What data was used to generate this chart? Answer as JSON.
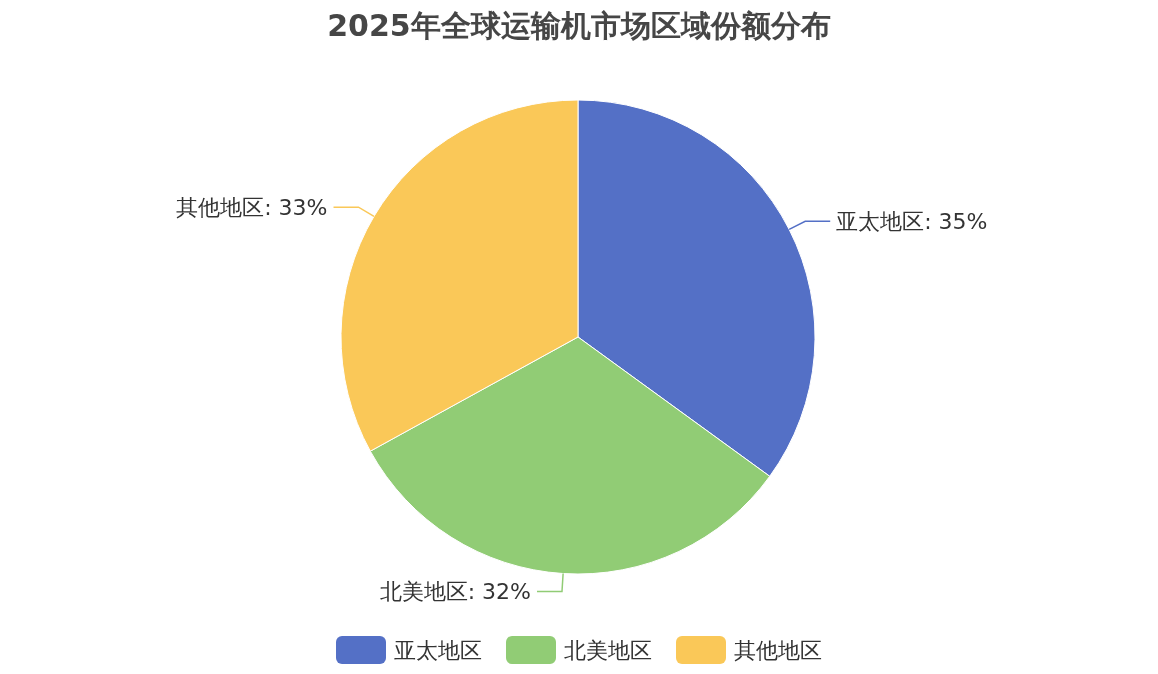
{
  "chart_data": {
    "type": "pie",
    "title": "2025年全球运输机市场区域份额分布",
    "categories": [
      "亚太地区",
      "北美地区",
      "其他地区"
    ],
    "values": [
      35,
      32,
      33
    ],
    "colors": [
      "#5470c6",
      "#91cc75",
      "#fac858"
    ],
    "value_labels": [
      ": 35%",
      ": 32%",
      ": 33%"
    ],
    "legend": "bottom"
  }
}
